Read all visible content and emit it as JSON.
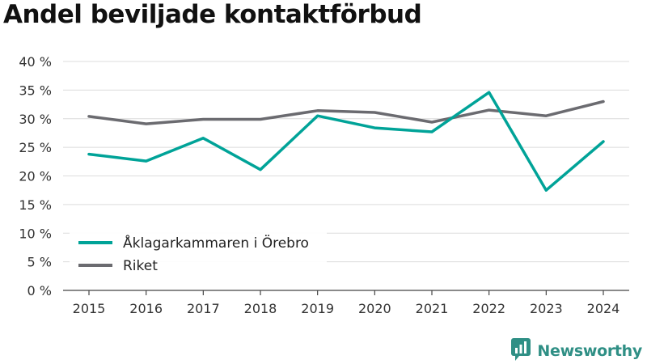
{
  "title": "Andel beviljade kontaktförbud",
  "brand": {
    "name": "Newsworthy",
    "icon": "newsworthy-logo-icon",
    "color": "#2f8f85"
  },
  "chart_data": {
    "type": "line",
    "title": "Andel beviljade kontaktförbud",
    "categories": [
      "2015",
      "2016",
      "2017",
      "2018",
      "2019",
      "2020",
      "2021",
      "2022",
      "2023",
      "2024"
    ],
    "ylim": [
      0,
      40
    ],
    "yticks": [
      0,
      5,
      10,
      15,
      20,
      25,
      30,
      35,
      40
    ],
    "ytick_labels": [
      "0 %",
      "5 %",
      "10 %",
      "15 %",
      "20 %",
      "25 %",
      "30 %",
      "35 %",
      "40 %"
    ],
    "grid": true,
    "legend_position": "bottom-left",
    "series": [
      {
        "name": "Åklagarkammaren i Örebro",
        "color": "#00a398",
        "values": [
          23.8,
          22.6,
          26.6,
          21.1,
          30.5,
          28.4,
          27.7,
          34.6,
          17.5,
          26.0
        ]
      },
      {
        "name": "Riket",
        "color": "#6b6b70",
        "values": [
          30.4,
          29.1,
          29.9,
          29.9,
          31.4,
          31.1,
          29.4,
          31.5,
          30.5,
          33.0
        ]
      }
    ]
  }
}
